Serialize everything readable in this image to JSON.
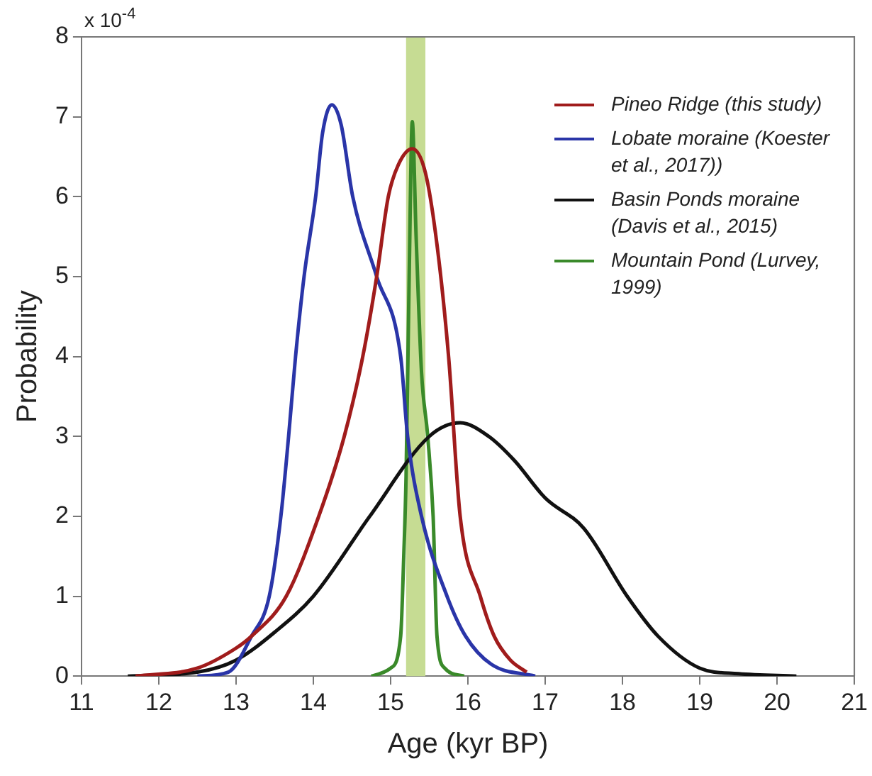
{
  "chart_data": {
    "type": "line",
    "xlabel": "Age (kyr BP)",
    "ylabel": "Probability",
    "annotations": [
      "x 10$^{-4}$"
    ],
    "xlim": [
      11,
      21
    ],
    "xticks": [
      11,
      12,
      13,
      14,
      15,
      16,
      17,
      18,
      19,
      20,
      21
    ],
    "ylim": [
      0,
      8
    ],
    "yticks": [
      0,
      1,
      2,
      3,
      4,
      5,
      6,
      7,
      8
    ],
    "grid": false,
    "legend": "top right",
    "marker": "none",
    "line_style": "solid",
    "bands": [
      {
        "axis": "x",
        "from": 15.2,
        "to": 15.45,
        "color": "#c6dc93"
      }
    ],
    "series": [
      {
        "name": "Pineo Ridge (this study)",
        "color": "#a01c1c",
        "x": [
          11.7,
          12.5,
          13.0,
          13.2,
          13.65,
          14.07,
          14.4,
          14.64,
          14.82,
          14.97,
          15.1,
          15.28,
          15.45,
          15.6,
          15.75,
          15.9,
          16.16,
          16.34,
          16.55,
          16.76
        ],
        "values": [
          0,
          0.1,
          0.35,
          0.5,
          1,
          2,
          3,
          4,
          5,
          6,
          6.4,
          6.6,
          6.3,
          5.4,
          4,
          2,
          1,
          0.5,
          0.2,
          0.05
        ]
      },
      {
        "name": "Lobate moraine (Koester et al., 2017))",
        "color": "#2a35a8",
        "x": [
          12.5,
          12.9,
          13.2,
          13.43,
          13.58,
          13.68,
          13.77,
          13.88,
          14.03,
          14.12,
          14.24,
          14.36,
          14.51,
          14.82,
          15.13,
          15.22,
          15.4,
          15.73,
          15.97,
          16.3,
          16.87
        ],
        "values": [
          0,
          0.05,
          0.5,
          1,
          2,
          3,
          4,
          5,
          6,
          6.8,
          7.15,
          6.9,
          6,
          5,
          4,
          3,
          2,
          1,
          0.5,
          0.15,
          0
        ]
      },
      {
        "name": "Basin Ponds moraine (Davis et al., 2015)",
        "color": "#111111",
        "x": [
          11.6,
          12.5,
          13.0,
          13.5,
          14.0,
          14.73,
          15.5,
          15.9,
          16.27,
          16.6,
          17.0,
          17.5,
          18.06,
          18.46,
          19.0,
          19.5,
          20.25
        ],
        "values": [
          0,
          0.05,
          0.2,
          0.55,
          1,
          2,
          3,
          3.17,
          3,
          2.7,
          2.23,
          1.85,
          1,
          0.5,
          0.1,
          0.03,
          0
        ]
      },
      {
        "name": "Mountain Pond (Lurvey, 1999)",
        "color": "#3a8a2a",
        "x": [
          14.75,
          15.0,
          15.13,
          15.17,
          15.2,
          15.24,
          15.28,
          15.33,
          15.4,
          15.48,
          15.55,
          15.6,
          15.7,
          15.95
        ],
        "values": [
          0,
          0.1,
          0.5,
          1.5,
          2.5,
          5,
          6.94,
          5.5,
          3.8,
          3,
          2,
          0.5,
          0.1,
          0
        ]
      }
    ]
  }
}
